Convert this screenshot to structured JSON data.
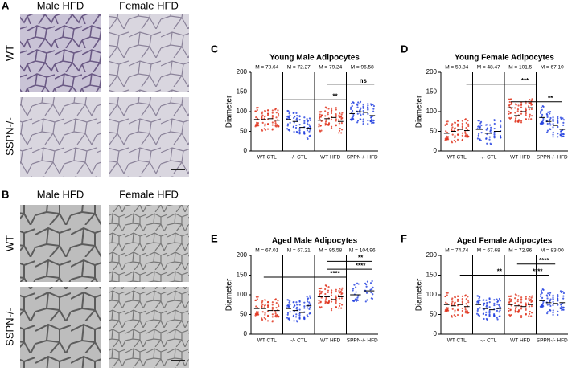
{
  "figure": {
    "panel_a": "A",
    "panel_b": "B",
    "col_headers": [
      "Male HFD",
      "Female HFD"
    ],
    "row_labels": [
      "WT",
      "SSPN-/-"
    ]
  },
  "chart_data": [
    {
      "type": "dotplot",
      "panel": "C",
      "title": "Young Male Adipocytes",
      "ylabel": "Diameter",
      "ylim": [
        0,
        200
      ],
      "yticks": [
        0,
        50,
        100,
        150,
        200
      ],
      "annotations": [
        "M = 78.64",
        "M = 72.27",
        "M = 79.24",
        "M = 96.58"
      ],
      "significance": [
        "**",
        "ns"
      ],
      "groups": [
        {
          "name": "WT CTL",
          "color": "#e0321c",
          "values": [
            80,
            80,
            82,
            78
          ]
        },
        {
          "name": "-/- CTL",
          "color": "#1f3de0",
          "values": [
            80,
            75,
            60,
            58
          ]
        },
        {
          "name": "WT HFD",
          "color": "#e0321c",
          "values": [
            78,
            82,
            85,
            75
          ]
        },
        {
          "name": "SPPN-/- HFD",
          "color": "#1f3de0",
          "values": [
            95,
            100,
            98,
            90
          ]
        }
      ]
    },
    {
      "type": "dotplot",
      "panel": "D",
      "title": "Young Female Adipocytes",
      "ylabel": "Diameter",
      "ylim": [
        0,
        200
      ],
      "yticks": [
        0,
        50,
        100,
        150,
        200
      ],
      "annotations": [
        "M = 50.84",
        "M = 48.47",
        "M = 101.5",
        "M = 67.10"
      ],
      "significance": [
        "***",
        "**"
      ],
      "groups": [
        {
          "name": "WT CTL",
          "color": "#e0321c",
          "values": [
            45,
            50,
            55,
            52
          ]
        },
        {
          "name": "-/- CTL",
          "color": "#1f3de0",
          "values": [
            55,
            45,
            50
          ]
        },
        {
          "name": "WT HFD",
          "color": "#e0321c",
          "values": [
            110,
            90,
            100,
            110
          ]
        },
        {
          "name": "SPPN-/- HFD",
          "color": "#1f3de0",
          "values": [
            85,
            75,
            65,
            55
          ]
        }
      ]
    },
    {
      "type": "dotplot",
      "panel": "E",
      "title": "Aged Male Adipocytes",
      "ylabel": "Diameter",
      "ylim": [
        0,
        200
      ],
      "yticks": [
        0,
        50,
        100,
        150,
        200
      ],
      "annotations": [
        "M = 67.01",
        "M = 67.21",
        "M = 95.58",
        "M = 104.96"
      ],
      "significance": [
        "****",
        "****",
        "**"
      ],
      "groups": [
        {
          "name": "WT CTL",
          "color": "#e0321c",
          "values": [
            65,
            65,
            60,
            60
          ]
        },
        {
          "name": "-/- CTL",
          "color": "#1f3de0",
          "values": [
            65,
            60,
            55,
            72
          ]
        },
        {
          "name": "WT HFD",
          "color": "#e0321c",
          "values": [
            95,
            95,
            88,
            95
          ]
        },
        {
          "name": "SPPN-/- HFD",
          "color": "#1f3de0",
          "values": [
            100,
            110
          ]
        }
      ]
    },
    {
      "type": "dotplot",
      "panel": "F",
      "title": "Aged Female Adipocytes",
      "ylabel": "Diameter",
      "ylim": [
        0,
        200
      ],
      "yticks": [
        0,
        50,
        100,
        150,
        200
      ],
      "annotations": [
        "M = 74.74",
        "M = 67.68",
        "M = 72.96",
        "M = 83.00"
      ],
      "significance": [
        "**",
        "****",
        "****"
      ],
      "groups": [
        {
          "name": "WT CTL",
          "color": "#e0321c",
          "values": [
            75,
            72,
            75,
            70
          ]
        },
        {
          "name": "-/- CTL",
          "color": "#1f3de0",
          "values": [
            75,
            65,
            62,
            65
          ]
        },
        {
          "name": "WT HFD",
          "color": "#e0321c",
          "values": [
            75,
            72,
            70,
            75
          ]
        },
        {
          "name": "SPPN-/- HFD",
          "color": "#1f3de0",
          "values": [
            85,
            80,
            78,
            80
          ]
        }
      ]
    }
  ]
}
